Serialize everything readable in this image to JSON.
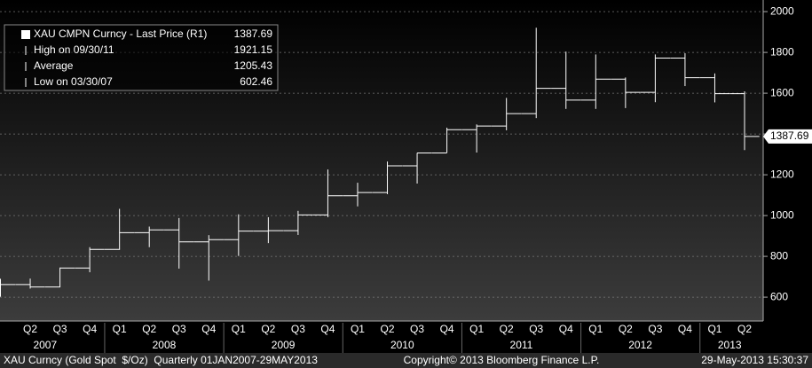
{
  "chart_data": {
    "type": "ohlc",
    "categories": [
      null,
      "Q2",
      "Q3",
      "Q4",
      "Q1",
      "Q2",
      "Q3",
      "Q4",
      "Q1",
      "Q2",
      "Q3",
      "Q4",
      "Q1",
      "Q2",
      "Q3",
      "Q4",
      "Q1",
      "Q2",
      "Q3",
      "Q4",
      "Q1",
      "Q2",
      "Q3",
      "Q4",
      "Q1",
      "Q2"
    ],
    "years": [
      "2007",
      "2008",
      "2009",
      "2010",
      "2011",
      "2012",
      "2013"
    ],
    "open": [
      636,
      662,
      650,
      743,
      834,
      916,
      930,
      871,
      882,
      924,
      926,
      1003,
      1097,
      1113,
      1244,
      1307,
      1421,
      1439,
      1500,
      1624,
      1566,
      1669,
      1604,
      1772,
      1676,
      1598
    ],
    "high": [
      690,
      691,
      745,
      845,
      1033,
      946,
      988,
      904,
      1006,
      992,
      1023,
      1226,
      1161,
      1265,
      1307,
      1431,
      1447,
      1577,
      1921,
      1804,
      1790,
      1677,
      1790,
      1796,
      1697,
      1609
    ],
    "low": [
      602,
      642,
      648,
      722,
      832,
      845,
      740,
      681,
      802,
      865,
      905,
      992,
      1045,
      1105,
      1157,
      1308,
      1309,
      1418,
      1478,
      1523,
      1523,
      1527,
      1556,
      1635,
      1555,
      1321
    ],
    "close": [
      662,
      650,
      743,
      834,
      916,
      930,
      871,
      882,
      924,
      926,
      1003,
      1097,
      1113,
      1244,
      1307,
      1421,
      1439,
      1500,
      1624,
      1566,
      1669,
      1604,
      1772,
      1676,
      1598,
      1388
    ],
    "color": "#ffffff",
    "ylim": [
      483,
      2057
    ],
    "yticks": [
      600,
      800,
      1000,
      1200,
      1400,
      1600,
      1800,
      2000
    ],
    "grid": true,
    "last_price": 1387.69,
    "legend": [
      {
        "name": "XAU CMPN Curncy - Last Price (R1)",
        "value": 1387.69
      },
      {
        "name": "High on 09/30/11",
        "value": 1921.15
      },
      {
        "name": "Average",
        "value": 1205.43
      },
      {
        "name": "Low on 03/30/07",
        "value": 602.46
      }
    ],
    "footer_left": "XAU Curncy (Gold Spot  $/Oz)  Quarterly 01JAN2007-29MAY2013",
    "footer_center": "Copyright© 2013 Bloomberg Finance L.P.",
    "footer_right": "29-May-2013 15:30:37"
  }
}
